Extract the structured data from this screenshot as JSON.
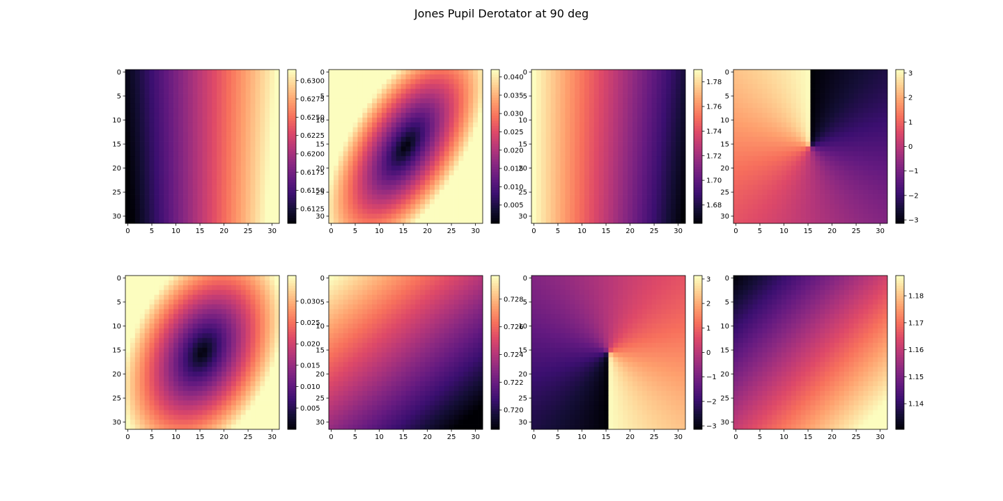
{
  "title": "Jones Pupil Derotator at 90 deg",
  "colormap": "magma",
  "chart_data": [
    {
      "type": "heatmap",
      "pattern": "gradient_x",
      "grid_size": 32,
      "xlim": [
        0,
        31
      ],
      "ylim": [
        31,
        0
      ],
      "xticks": [
        "0",
        "5",
        "10",
        "15",
        "20",
        "25",
        "30"
      ],
      "yticks": [
        "0",
        "5",
        "10",
        "15",
        "20",
        "25",
        "30"
      ],
      "colorbar": {
        "min": 0.6105,
        "max": 0.6315,
        "ticks": [
          "0.6125",
          "0.6150",
          "0.6175",
          "0.6200",
          "0.6225",
          "0.6250",
          "0.6275",
          "0.6300"
        ],
        "values": [
          0.6125,
          0.615,
          0.6175,
          0.62,
          0.6225,
          0.625,
          0.6275,
          0.63
        ]
      }
    },
    {
      "type": "heatmap",
      "pattern": "ellipse_min",
      "grid_size": 32,
      "xlim": [
        0,
        31
      ],
      "ylim": [
        31,
        0
      ],
      "xticks": [
        "0",
        "5",
        "10",
        "15",
        "20",
        "25",
        "30"
      ],
      "yticks": [
        "0",
        "5",
        "10",
        "15",
        "20",
        "25",
        "30"
      ],
      "colorbar": {
        "min": 0.0,
        "max": 0.042,
        "ticks": [
          "0.005",
          "0.010",
          "0.015",
          "0.020",
          "0.025",
          "0.030",
          "0.035",
          "0.040"
        ],
        "values": [
          0.005,
          0.01,
          0.015,
          0.02,
          0.025,
          0.03,
          0.035,
          0.04
        ]
      }
    },
    {
      "type": "heatmap",
      "pattern": "gradient_x_rev",
      "grid_size": 32,
      "xlim": [
        0,
        31
      ],
      "ylim": [
        31,
        0
      ],
      "xticks": [
        "0",
        "5",
        "10",
        "15",
        "20",
        "25",
        "30"
      ],
      "yticks": [
        "0",
        "5",
        "10",
        "15",
        "20",
        "25",
        "30"
      ],
      "colorbar": {
        "min": 1.665,
        "max": 1.79,
        "ticks": [
          "1.68",
          "1.70",
          "1.72",
          "1.74",
          "1.76",
          "1.78"
        ],
        "values": [
          1.68,
          1.7,
          1.72,
          1.74,
          1.76,
          1.78
        ]
      }
    },
    {
      "type": "heatmap",
      "pattern": "phase_a",
      "grid_size": 32,
      "xlim": [
        0,
        31
      ],
      "ylim": [
        31,
        0
      ],
      "xticks": [
        "0",
        "5",
        "10",
        "15",
        "20",
        "25",
        "30"
      ],
      "yticks": [
        "0",
        "5",
        "10",
        "15",
        "20",
        "25",
        "30"
      ],
      "colorbar": {
        "min": -3.14,
        "max": 3.14,
        "ticks": [
          "−3",
          "−2",
          "−1",
          "0",
          "1",
          "2",
          "3"
        ],
        "values": [
          -3,
          -2,
          -1,
          0,
          1,
          2,
          3
        ]
      }
    },
    {
      "type": "heatmap",
      "pattern": "ellipse_min_b",
      "grid_size": 32,
      "xlim": [
        0,
        31
      ],
      "ylim": [
        31,
        0
      ],
      "xticks": [
        "0",
        "5",
        "10",
        "15",
        "20",
        "25",
        "30"
      ],
      "yticks": [
        "0",
        "5",
        "10",
        "15",
        "20",
        "25",
        "30"
      ],
      "colorbar": {
        "min": 0.0,
        "max": 0.036,
        "ticks": [
          "0.005",
          "0.010",
          "0.015",
          "0.020",
          "0.025",
          "0.030"
        ],
        "values": [
          0.005,
          0.01,
          0.015,
          0.02,
          0.025,
          0.03
        ]
      }
    },
    {
      "type": "heatmap",
      "pattern": "diag_tl_high",
      "grid_size": 32,
      "xlim": [
        0,
        31
      ],
      "ylim": [
        31,
        0
      ],
      "xticks": [
        "0",
        "5",
        "10",
        "15",
        "20",
        "25",
        "30"
      ],
      "yticks": [
        "0",
        "5",
        "10",
        "15",
        "20",
        "25",
        "30"
      ],
      "colorbar": {
        "min": 0.7186,
        "max": 0.7297,
        "ticks": [
          "0.720",
          "0.722",
          "0.724",
          "0.726",
          "0.728"
        ],
        "values": [
          0.72,
          0.722,
          0.724,
          0.726,
          0.728
        ]
      }
    },
    {
      "type": "heatmap",
      "pattern": "phase_b",
      "grid_size": 32,
      "xlim": [
        0,
        31
      ],
      "ylim": [
        31,
        0
      ],
      "xticks": [
        "0",
        "5",
        "10",
        "15",
        "20",
        "25",
        "30"
      ],
      "yticks": [
        "0",
        "5",
        "10",
        "15",
        "20",
        "25",
        "30"
      ],
      "colorbar": {
        "min": -3.14,
        "max": 3.14,
        "ticks": [
          "−3",
          "−2",
          "−1",
          "0",
          "1",
          "2",
          "3"
        ],
        "values": [
          -3,
          -2,
          -1,
          0,
          1,
          2,
          3
        ]
      }
    },
    {
      "type": "heatmap",
      "pattern": "diag_br_high",
      "grid_size": 32,
      "xlim": [
        0,
        31
      ],
      "ylim": [
        31,
        0
      ],
      "xticks": [
        "0",
        "5",
        "10",
        "15",
        "20",
        "25",
        "30"
      ],
      "yticks": [
        "0",
        "5",
        "10",
        "15",
        "20",
        "25",
        "30"
      ],
      "colorbar": {
        "min": 1.1305,
        "max": 1.1875,
        "ticks": [
          "1.14",
          "1.15",
          "1.16",
          "1.17",
          "1.18"
        ],
        "values": [
          1.14,
          1.15,
          1.16,
          1.17,
          1.18
        ]
      }
    }
  ]
}
